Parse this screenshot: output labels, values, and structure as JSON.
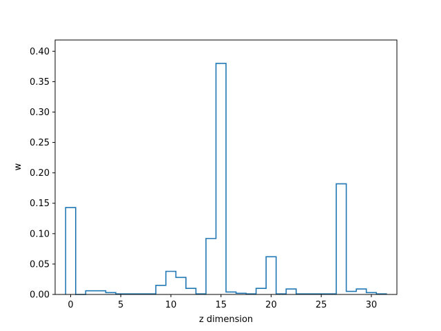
{
  "chart_data": {
    "type": "step",
    "title": "",
    "xlabel": "z dimension",
    "ylabel": "w",
    "xlim": [
      -1.55,
      32.55
    ],
    "ylim": [
      0,
      0.4185
    ],
    "xticks": [
      0,
      5,
      10,
      15,
      20,
      25,
      30
    ],
    "yticks": [
      0.0,
      0.05,
      0.1,
      0.15,
      0.2,
      0.25,
      0.3,
      0.35,
      0.4
    ],
    "ytick_labels": [
      "0.00",
      "0.05",
      "0.10",
      "0.15",
      "0.20",
      "0.25",
      "0.30",
      "0.35",
      "0.40"
    ],
    "grid": false,
    "line_color": "#1f77b4",
    "series": [
      {
        "x": [
          0,
          1,
          2,
          3,
          4,
          5,
          6,
          7,
          8,
          9,
          10,
          11,
          12,
          13,
          14,
          15,
          16,
          17,
          18,
          19,
          20,
          21,
          22,
          23,
          24,
          25,
          26,
          27,
          28,
          29,
          30,
          31
        ],
        "values": [
          0.143,
          0.0,
          0.006,
          0.006,
          0.003,
          0.001,
          0.001,
          0.001,
          0.001,
          0.015,
          0.038,
          0.028,
          0.01,
          0.001,
          0.092,
          0.38,
          0.004,
          0.002,
          0.001,
          0.01,
          0.062,
          0.001,
          0.009,
          0.001,
          0.001,
          0.001,
          0.001,
          0.182,
          0.005,
          0.009,
          0.003,
          0.001
        ]
      }
    ]
  }
}
